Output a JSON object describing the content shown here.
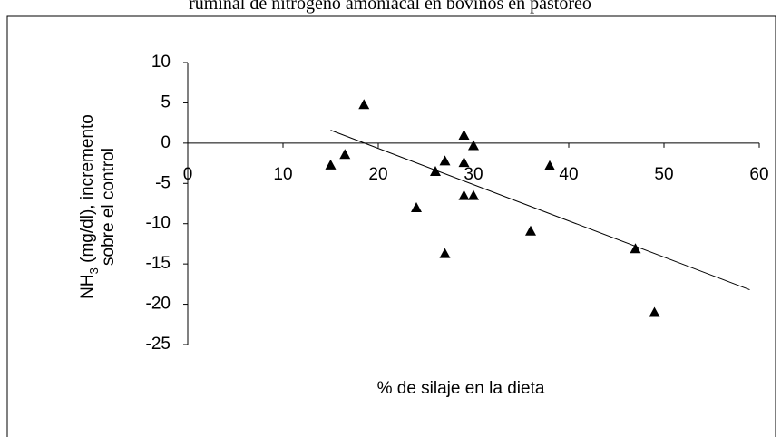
{
  "chart_data": {
    "type": "scatter",
    "title": "ruminal de nitrógeno amoniacal en bovinos en pastoreo",
    "x_label": "% de silaje en la dieta",
    "y_label": {
      "main": "NH",
      "sub": "3",
      "rest": " (mg/dl), incremento",
      "line2": "sobre el control"
    },
    "series": [
      {
        "name": "NH3",
        "color": "#000000",
        "x": [
          15,
          16.5,
          18.5,
          24,
          26,
          27,
          27,
          29,
          29,
          29,
          30,
          30,
          36,
          38,
          47,
          49
        ],
        "values": [
          -2.7,
          -1.4,
          4.8,
          -8,
          -3.5,
          -2.2,
          -13.7,
          1,
          -2.4,
          -6.5,
          -0.3,
          -6.5,
          -10.9,
          -2.8,
          -13.1,
          -21
        ]
      }
    ],
    "trendline": {
      "x": [
        15,
        59
      ],
      "values": [
        1.6,
        -18.2
      ]
    },
    "xlim": [
      0,
      60
    ],
    "xticks": [
      0,
      10,
      20,
      30,
      40,
      50,
      60
    ],
    "ylim": [
      -25,
      10
    ],
    "yticks": [
      10,
      5,
      0,
      -5,
      -10,
      -15,
      -20,
      -25
    ]
  }
}
